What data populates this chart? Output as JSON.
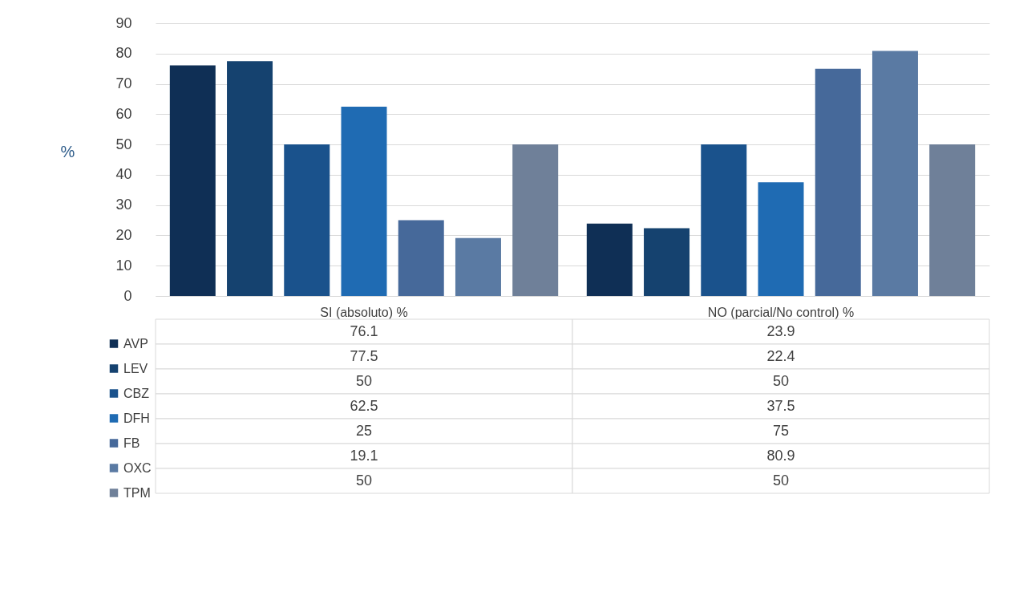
{
  "chart_data": {
    "type": "bar",
    "categories": [
      "SI (absoluto) %",
      "NO (parcial/No control) %"
    ],
    "series": [
      {
        "name": "AVP",
        "color": "#0f2f55",
        "values": [
          76.1,
          23.9
        ]
      },
      {
        "name": "LEV",
        "color": "#15426f",
        "values": [
          77.5,
          22.4
        ]
      },
      {
        "name": "CBZ",
        "color": "#1a528c",
        "values": [
          50,
          50
        ]
      },
      {
        "name": "DFH",
        "color": "#1f6bb3",
        "values": [
          62.5,
          37.5
        ]
      },
      {
        "name": "FB",
        "color": "#46699a",
        "values": [
          25,
          75
        ]
      },
      {
        "name": "OXC",
        "color": "#5a7aa3",
        "values": [
          19.1,
          80.9
        ]
      },
      {
        "name": "TPM",
        "color": "#6f8099",
        "values": [
          50,
          50
        ]
      }
    ],
    "ylabel": "%",
    "ylim": [
      0,
      90
    ],
    "yticks": [
      0,
      10,
      20,
      30,
      40,
      50,
      60,
      70,
      80,
      90
    ],
    "grid": "y",
    "data_labels": true,
    "legend": "bottom"
  }
}
